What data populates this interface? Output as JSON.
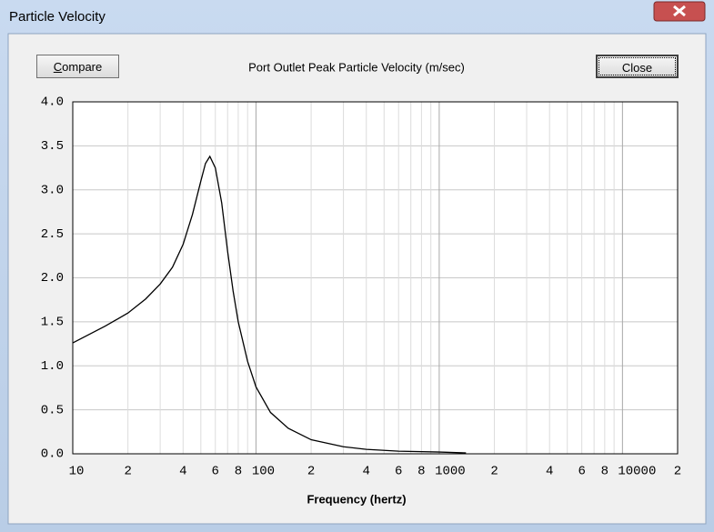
{
  "window": {
    "title": "Particle Velocity"
  },
  "buttons": {
    "compare": "Compare",
    "close": "Close"
  },
  "chart_data": {
    "type": "line",
    "title": "Port Outlet Peak Particle Velocity (m/sec)",
    "x_label": "Frequency (hertz)",
    "log_x": true,
    "grid": true,
    "color": "#000000",
    "x": [
      10,
      15,
      20,
      25,
      30,
      35,
      40,
      45,
      50,
      53,
      56,
      60,
      65,
      70,
      75,
      80,
      90,
      100,
      120,
      150,
      200,
      300,
      400,
      600,
      1000,
      1400
    ],
    "values": [
      1.26,
      1.45,
      1.6,
      1.76,
      1.93,
      2.12,
      2.38,
      2.72,
      3.1,
      3.3,
      3.38,
      3.25,
      2.85,
      2.3,
      1.85,
      1.5,
      1.05,
      0.76,
      0.47,
      0.29,
      0.16,
      0.08,
      0.05,
      0.03,
      0.02,
      0.01
    ],
    "xlim": [
      10,
      20000
    ],
    "xticks": [
      10,
      {
        "value": 20,
        "label": "2"
      },
      {
        "value": 40,
        "label": "4"
      },
      {
        "value": 60,
        "label": "6"
      },
      {
        "value": 80,
        "label": "8"
      },
      100,
      {
        "value": 200,
        "label": "2"
      },
      {
        "value": 400,
        "label": "4"
      },
      {
        "value": 600,
        "label": "6"
      },
      {
        "value": 800,
        "label": "8"
      },
      1000,
      {
        "value": 2000,
        "label": "2"
      },
      {
        "value": 4000,
        "label": "4"
      },
      {
        "value": 6000,
        "label": "6"
      },
      {
        "value": 8000,
        "label": "8"
      },
      10000,
      {
        "value": 20000,
        "label": "2"
      }
    ],
    "minor_xticks": [
      30,
      50,
      70,
      90,
      300,
      500,
      700,
      900,
      3000,
      5000,
      7000,
      9000
    ],
    "ylim": [
      0,
      4
    ],
    "yticks": [
      {
        "value": 0,
        "label": "0.0"
      },
      0.5,
      {
        "value": 1,
        "label": "1.0"
      },
      1.5,
      {
        "value": 2,
        "label": "2.0"
      },
      2.5,
      {
        "value": 3,
        "label": "3.0"
      },
      3.5,
      {
        "value": 4,
        "label": "4.0"
      }
    ]
  }
}
